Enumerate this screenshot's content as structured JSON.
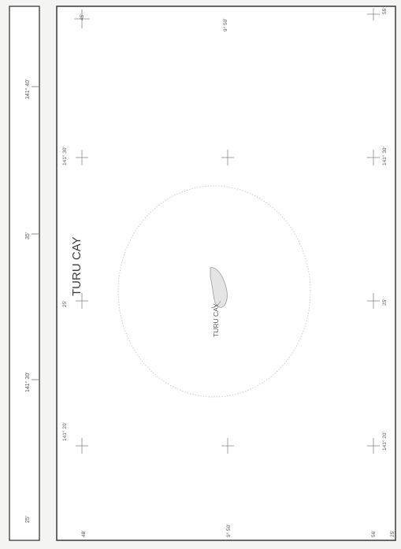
{
  "map": {
    "title": "TURU CAY",
    "feature_label": "TURU CAY"
  },
  "strip_labels": {
    "lon_25": "25'",
    "lon_141_30": "141° 30'",
    "lon_35": "35'",
    "lon_141_40": "141° 40'"
  },
  "top_labels": {
    "lon_141_20": "141° 20'",
    "lon_25": "25'",
    "lon_141_30": "141° 30'",
    "lat_45": "45'"
  },
  "left_labels": {
    "lat_48": "48'",
    "lat_9_50": "9° 50'",
    "lat_56": "56'"
  },
  "bottom_labels": {
    "lon_141_20": "141° 20'",
    "lon_25": "25'",
    "lon_141_30": "141° 30'",
    "lat_9_50": "9° 50'",
    "lat_55": "55'",
    "lon_25_b": "25'"
  },
  "colors": {
    "frame": "#2a2a2a",
    "paper": "#ffffff",
    "background": "#f4f4f2",
    "label": "#5a5a5a",
    "reef": "#b9b9b9",
    "cay": "#9a9a9a"
  }
}
